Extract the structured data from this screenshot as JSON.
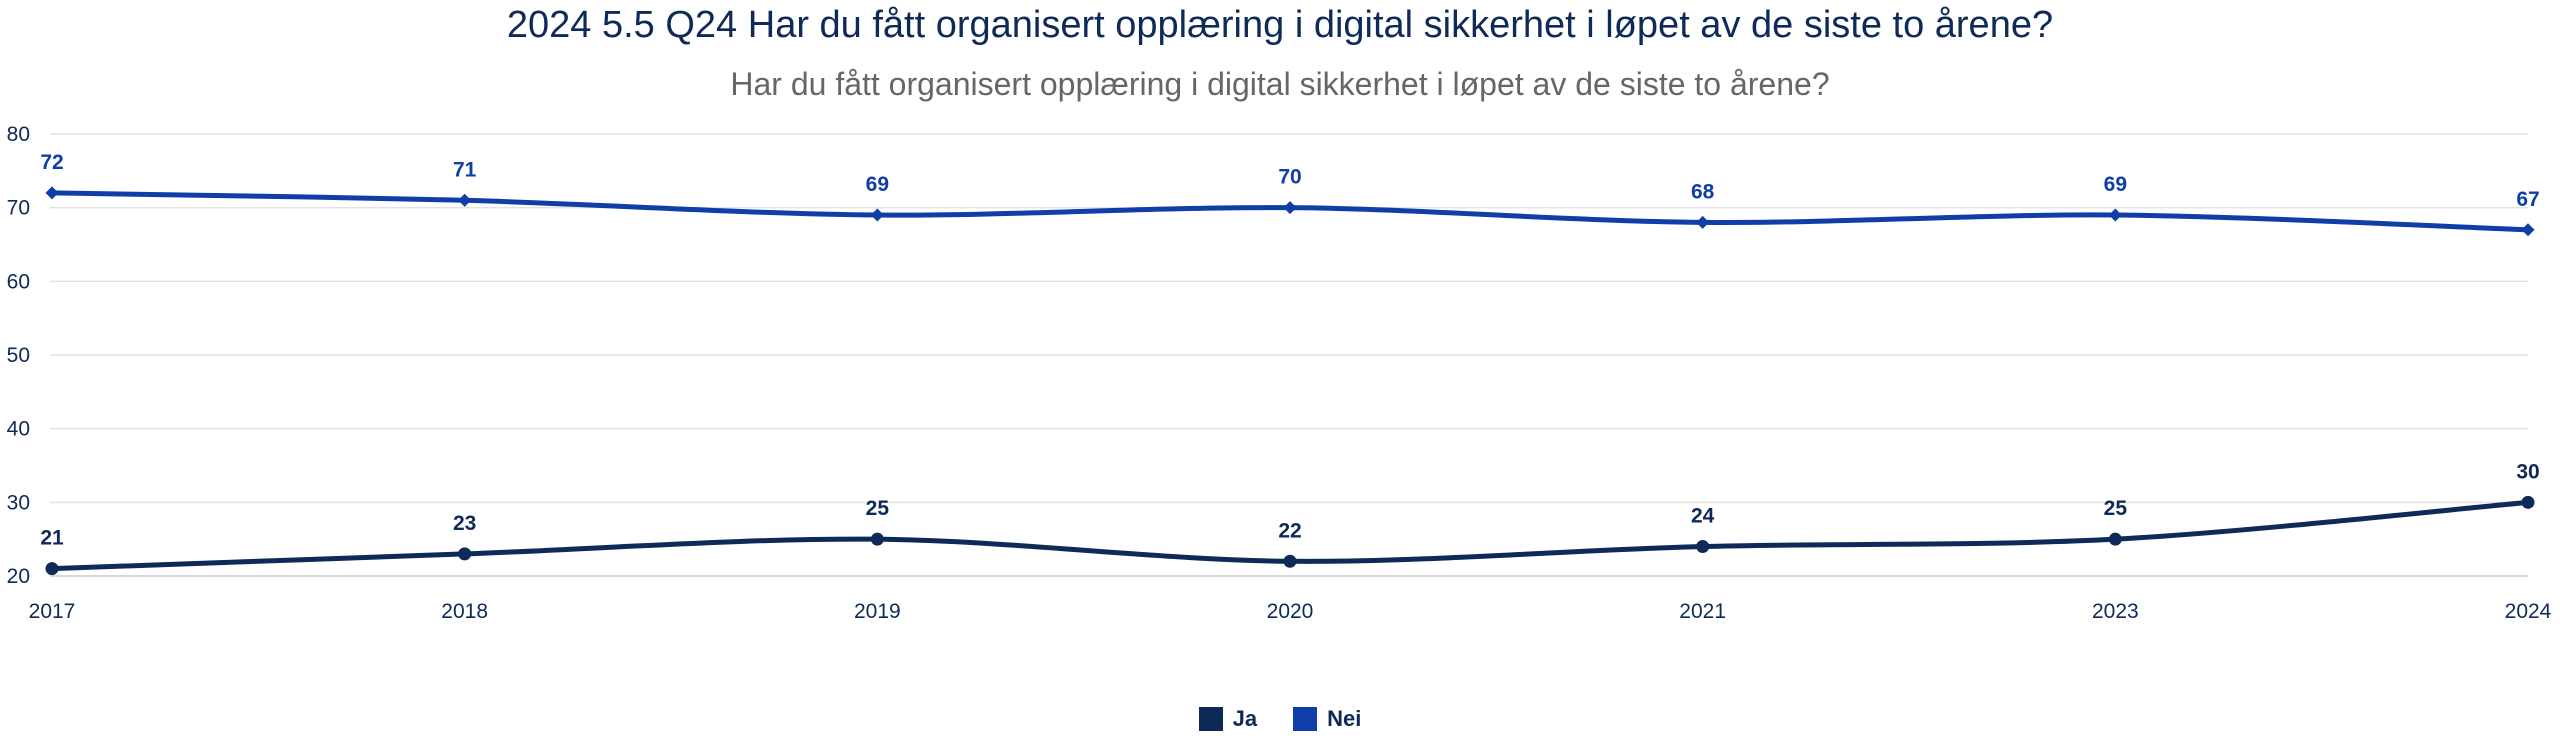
{
  "header": {
    "title": "2024 5.5 Q24 Har du fått organisert opplæring i digital sikkerhet i løpet av de siste to årene?",
    "subtitle": "Har du fått organisert opplæring i digital sikkerhet i løpet av de siste to årene?"
  },
  "colors": {
    "ja": "#0e2a57",
    "nei": "#0f3ea8",
    "grid": "#e2e2e2",
    "axis_text": "#0e2a57"
  },
  "chart_data": {
    "type": "line",
    "title": "2024 5.5 Q24 Har du fått organisert opplæring i digital sikkerhet i løpet av de siste to årene?",
    "subtitle": "Har du fått organisert opplæring i digital sikkerhet i løpet av de siste to årene?",
    "categories": [
      "2017",
      "2018",
      "2019",
      "2020",
      "2021",
      "2023",
      "2024"
    ],
    "series": [
      {
        "name": "Ja",
        "values": [
          21,
          23,
          25,
          22,
          24,
          25,
          30
        ]
      },
      {
        "name": "Nei",
        "values": [
          72,
          71,
          69,
          70,
          68,
          69,
          67
        ]
      }
    ],
    "ylim": [
      20,
      80
    ],
    "yticks": [
      20,
      30,
      40,
      50,
      60,
      70,
      80
    ],
    "grid": true,
    "legend_position": "bottom-center",
    "data_labels": true
  }
}
